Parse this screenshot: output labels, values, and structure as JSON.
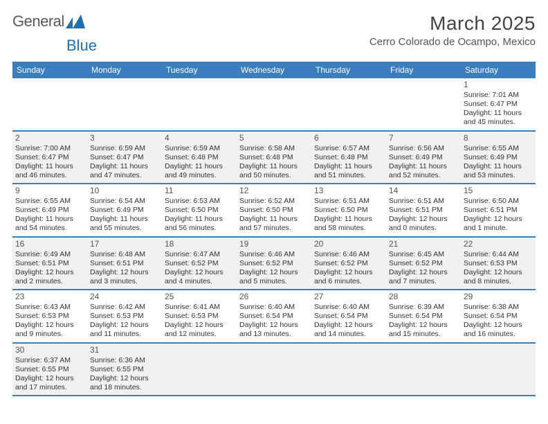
{
  "brand": {
    "name_a": "General",
    "name_b": "Blue"
  },
  "title": "March 2025",
  "location": "Cerro Colorado de Ocampo, Mexico",
  "dow": [
    "Sunday",
    "Monday",
    "Tuesday",
    "Wednesday",
    "Thursday",
    "Friday",
    "Saturday"
  ],
  "colors": {
    "header_bg": "#3a7ebf",
    "header_fg": "#ffffff",
    "row_divider": "#3a7ebf",
    "shaded_bg": "#f1f1f1",
    "text": "#333333",
    "logo_blue": "#1f6fb2"
  },
  "weeks": [
    [
      {
        "blank": true,
        "shaded": false
      },
      {
        "blank": true,
        "shaded": false
      },
      {
        "blank": true,
        "shaded": false
      },
      {
        "blank": true,
        "shaded": false
      },
      {
        "blank": true,
        "shaded": false
      },
      {
        "blank": true,
        "shaded": false
      },
      {
        "num": "1",
        "shaded": false,
        "sunrise": "Sunrise: 7:01 AM",
        "sunset": "Sunset: 6:47 PM",
        "daylight": "Daylight: 11 hours and 45 minutes."
      }
    ],
    [
      {
        "num": "2",
        "shaded": true,
        "sunrise": "Sunrise: 7:00 AM",
        "sunset": "Sunset: 6:47 PM",
        "daylight": "Daylight: 11 hours and 46 minutes."
      },
      {
        "num": "3",
        "shaded": true,
        "sunrise": "Sunrise: 6:59 AM",
        "sunset": "Sunset: 6:47 PM",
        "daylight": "Daylight: 11 hours and 47 minutes."
      },
      {
        "num": "4",
        "shaded": true,
        "sunrise": "Sunrise: 6:59 AM",
        "sunset": "Sunset: 6:48 PM",
        "daylight": "Daylight: 11 hours and 49 minutes."
      },
      {
        "num": "5",
        "shaded": true,
        "sunrise": "Sunrise: 6:58 AM",
        "sunset": "Sunset: 6:48 PM",
        "daylight": "Daylight: 11 hours and 50 minutes."
      },
      {
        "num": "6",
        "shaded": true,
        "sunrise": "Sunrise: 6:57 AM",
        "sunset": "Sunset: 6:48 PM",
        "daylight": "Daylight: 11 hours and 51 minutes."
      },
      {
        "num": "7",
        "shaded": true,
        "sunrise": "Sunrise: 6:56 AM",
        "sunset": "Sunset: 6:49 PM",
        "daylight": "Daylight: 11 hours and 52 minutes."
      },
      {
        "num": "8",
        "shaded": true,
        "sunrise": "Sunrise: 6:55 AM",
        "sunset": "Sunset: 6:49 PM",
        "daylight": "Daylight: 11 hours and 53 minutes."
      }
    ],
    [
      {
        "num": "9",
        "shaded": false,
        "sunrise": "Sunrise: 6:55 AM",
        "sunset": "Sunset: 6:49 PM",
        "daylight": "Daylight: 11 hours and 54 minutes."
      },
      {
        "num": "10",
        "shaded": false,
        "sunrise": "Sunrise: 6:54 AM",
        "sunset": "Sunset: 6:49 PM",
        "daylight": "Daylight: 11 hours and 55 minutes."
      },
      {
        "num": "11",
        "shaded": false,
        "sunrise": "Sunrise: 6:53 AM",
        "sunset": "Sunset: 6:50 PM",
        "daylight": "Daylight: 11 hours and 56 minutes."
      },
      {
        "num": "12",
        "shaded": false,
        "sunrise": "Sunrise: 6:52 AM",
        "sunset": "Sunset: 6:50 PM",
        "daylight": "Daylight: 11 hours and 57 minutes."
      },
      {
        "num": "13",
        "shaded": false,
        "sunrise": "Sunrise: 6:51 AM",
        "sunset": "Sunset: 6:50 PM",
        "daylight": "Daylight: 11 hours and 58 minutes."
      },
      {
        "num": "14",
        "shaded": false,
        "sunrise": "Sunrise: 6:51 AM",
        "sunset": "Sunset: 6:51 PM",
        "daylight": "Daylight: 12 hours and 0 minutes."
      },
      {
        "num": "15",
        "shaded": false,
        "sunrise": "Sunrise: 6:50 AM",
        "sunset": "Sunset: 6:51 PM",
        "daylight": "Daylight: 12 hours and 1 minute."
      }
    ],
    [
      {
        "num": "16",
        "shaded": true,
        "sunrise": "Sunrise: 6:49 AM",
        "sunset": "Sunset: 6:51 PM",
        "daylight": "Daylight: 12 hours and 2 minutes."
      },
      {
        "num": "17",
        "shaded": true,
        "sunrise": "Sunrise: 6:48 AM",
        "sunset": "Sunset: 6:51 PM",
        "daylight": "Daylight: 12 hours and 3 minutes."
      },
      {
        "num": "18",
        "shaded": true,
        "sunrise": "Sunrise: 6:47 AM",
        "sunset": "Sunset: 6:52 PM",
        "daylight": "Daylight: 12 hours and 4 minutes."
      },
      {
        "num": "19",
        "shaded": true,
        "sunrise": "Sunrise: 6:46 AM",
        "sunset": "Sunset: 6:52 PM",
        "daylight": "Daylight: 12 hours and 5 minutes."
      },
      {
        "num": "20",
        "shaded": true,
        "sunrise": "Sunrise: 6:46 AM",
        "sunset": "Sunset: 6:52 PM",
        "daylight": "Daylight: 12 hours and 6 minutes."
      },
      {
        "num": "21",
        "shaded": true,
        "sunrise": "Sunrise: 6:45 AM",
        "sunset": "Sunset: 6:52 PM",
        "daylight": "Daylight: 12 hours and 7 minutes."
      },
      {
        "num": "22",
        "shaded": true,
        "sunrise": "Sunrise: 6:44 AM",
        "sunset": "Sunset: 6:53 PM",
        "daylight": "Daylight: 12 hours and 8 minutes."
      }
    ],
    [
      {
        "num": "23",
        "shaded": false,
        "sunrise": "Sunrise: 6:43 AM",
        "sunset": "Sunset: 6:53 PM",
        "daylight": "Daylight: 12 hours and 9 minutes."
      },
      {
        "num": "24",
        "shaded": false,
        "sunrise": "Sunrise: 6:42 AM",
        "sunset": "Sunset: 6:53 PM",
        "daylight": "Daylight: 12 hours and 11 minutes."
      },
      {
        "num": "25",
        "shaded": false,
        "sunrise": "Sunrise: 6:41 AM",
        "sunset": "Sunset: 6:53 PM",
        "daylight": "Daylight: 12 hours and 12 minutes."
      },
      {
        "num": "26",
        "shaded": false,
        "sunrise": "Sunrise: 6:40 AM",
        "sunset": "Sunset: 6:54 PM",
        "daylight": "Daylight: 12 hours and 13 minutes."
      },
      {
        "num": "27",
        "shaded": false,
        "sunrise": "Sunrise: 6:40 AM",
        "sunset": "Sunset: 6:54 PM",
        "daylight": "Daylight: 12 hours and 14 minutes."
      },
      {
        "num": "28",
        "shaded": false,
        "sunrise": "Sunrise: 6:39 AM",
        "sunset": "Sunset: 6:54 PM",
        "daylight": "Daylight: 12 hours and 15 minutes."
      },
      {
        "num": "29",
        "shaded": false,
        "sunrise": "Sunrise: 6:38 AM",
        "sunset": "Sunset: 6:54 PM",
        "daylight": "Daylight: 12 hours and 16 minutes."
      }
    ],
    [
      {
        "num": "30",
        "shaded": true,
        "sunrise": "Sunrise: 6:37 AM",
        "sunset": "Sunset: 6:55 PM",
        "daylight": "Daylight: 12 hours and 17 minutes."
      },
      {
        "num": "31",
        "shaded": true,
        "sunrise": "Sunrise: 6:36 AM",
        "sunset": "Sunset: 6:55 PM",
        "daylight": "Daylight: 12 hours and 18 minutes."
      },
      {
        "blank": true,
        "shaded": true
      },
      {
        "blank": true,
        "shaded": true
      },
      {
        "blank": true,
        "shaded": true
      },
      {
        "blank": true,
        "shaded": true
      },
      {
        "blank": true,
        "shaded": true
      }
    ]
  ]
}
